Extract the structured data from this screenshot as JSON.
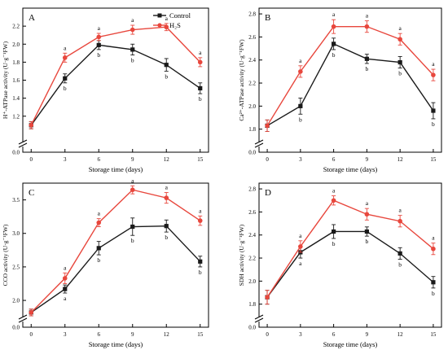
{
  "chart_data": [
    {
      "type": "line",
      "panel_label": "A",
      "xlabel": "Storage time (days)",
      "ylabel": "H⁺-ATPase activity (U·g⁻¹FW)",
      "x": [
        0,
        3,
        6,
        9,
        12,
        15
      ],
      "x_ticks": [
        "0",
        "3",
        "6",
        "9",
        "12",
        "15"
      ],
      "ylim": [
        0.8,
        2.4
      ],
      "y_break": [
        0.2,
        1.0
      ],
      "y_ticks": [
        "0.0",
        "1.2",
        "1.4",
        "1.6",
        "1.8",
        "2.0",
        "2.2"
      ],
      "y_tick_values": [
        0.8,
        1.2,
        1.4,
        1.6,
        1.8,
        2.0,
        2.2
      ],
      "legend": {
        "position": "top-right"
      },
      "series": [
        {
          "name": "Control",
          "color": "#1a1a1a",
          "marker": "square",
          "values": [
            1.1,
            1.62,
            1.99,
            1.94,
            1.77,
            1.51
          ],
          "errors": [
            0.04,
            0.05,
            0.05,
            0.06,
            0.07,
            0.06
          ],
          "letters": [
            "",
            "b",
            "b",
            "b",
            "b",
            "b"
          ]
        },
        {
          "name": "H₂S",
          "color": "#e8473d",
          "marker": "circle",
          "values": [
            1.1,
            1.85,
            2.08,
            2.16,
            2.19,
            1.8
          ],
          "errors": [
            0.04,
            0.05,
            0.04,
            0.05,
            0.04,
            0.05
          ],
          "letters": [
            "",
            "a",
            "a",
            "a",
            "a",
            "a"
          ]
        }
      ]
    },
    {
      "type": "line",
      "panel_label": "B",
      "xlabel": "Storage time (days)",
      "ylabel": "Ca²⁺-ATPase activity (U·g⁻¹FW)",
      "x": [
        0,
        3,
        6,
        9,
        12,
        15
      ],
      "x_ticks": [
        "0",
        "3",
        "6",
        "9",
        "12",
        "15"
      ],
      "ylim": [
        1.6,
        2.85
      ],
      "y_break": [
        0.2,
        1.75
      ],
      "y_ticks": [
        "0.0",
        "1.8",
        "2.0",
        "2.2",
        "2.4",
        "2.6",
        "2.8"
      ],
      "y_tick_values": [
        1.6,
        1.8,
        2.0,
        2.2,
        2.4,
        2.6,
        2.8
      ],
      "series": [
        {
          "name": "Control",
          "color": "#1a1a1a",
          "marker": "square",
          "values": [
            1.83,
            2.0,
            2.54,
            2.41,
            2.38,
            1.96
          ],
          "errors": [
            0.05,
            0.07,
            0.05,
            0.04,
            0.05,
            0.07
          ],
          "letters": [
            "",
            "b",
            "b",
            "b",
            "b",
            "b"
          ]
        },
        {
          "name": "H₂S",
          "color": "#e8473d",
          "marker": "circle",
          "values": [
            1.83,
            2.3,
            2.69,
            2.69,
            2.58,
            2.27
          ],
          "errors": [
            0.05,
            0.05,
            0.06,
            0.05,
            0.05,
            0.05
          ],
          "letters": [
            "",
            "a",
            "a",
            "a",
            "a",
            "a"
          ]
        }
      ]
    },
    {
      "type": "line",
      "panel_label": "C",
      "xlabel": "Storage time (days)",
      "ylabel": "CCO activity (U·g⁻¹FW)",
      "x": [
        0,
        3,
        6,
        9,
        12,
        15
      ],
      "x_ticks": [
        "0",
        "3",
        "6",
        "9",
        "12",
        "15"
      ],
      "ylim": [
        1.6,
        3.75
      ],
      "y_break": [
        0.2,
        1.7
      ],
      "y_ticks": [
        "0.0",
        "2.0",
        "2.5",
        "3.0",
        "3.5"
      ],
      "y_tick_values": [
        1.6,
        2.0,
        2.5,
        3.0,
        3.5
      ],
      "series": [
        {
          "name": "Control",
          "color": "#1a1a1a",
          "marker": "square",
          "values": [
            1.82,
            2.17,
            2.78,
            3.1,
            3.11,
            2.58
          ],
          "errors": [
            0.05,
            0.06,
            0.1,
            0.13,
            0.09,
            0.08
          ],
          "letters": [
            "",
            "a",
            "b",
            "b",
            "b",
            "b"
          ]
        },
        {
          "name": "H₂S",
          "color": "#e8473d",
          "marker": "circle",
          "values": [
            1.82,
            2.33,
            3.16,
            3.65,
            3.53,
            3.19
          ],
          "errors": [
            0.05,
            0.08,
            0.06,
            0.06,
            0.08,
            0.07
          ],
          "letters": [
            "",
            "a",
            "a",
            "a",
            "a",
            "a"
          ]
        }
      ]
    },
    {
      "type": "line",
      "panel_label": "D",
      "xlabel": "Storage time (days)",
      "ylabel": "SDH activity (U·g⁻¹FW)",
      "x": [
        0,
        3,
        6,
        9,
        12,
        15
      ],
      "x_ticks": [
        "0",
        "3",
        "6",
        "9",
        "12",
        "15"
      ],
      "ylim": [
        1.6,
        2.85
      ],
      "y_break": [
        0.2,
        1.75
      ],
      "y_ticks": [
        "0.0",
        "1.8",
        "2.0",
        "2.2",
        "2.4",
        "2.6",
        "2.8"
      ],
      "y_tick_values": [
        1.6,
        1.8,
        2.0,
        2.2,
        2.4,
        2.6,
        2.8
      ],
      "series": [
        {
          "name": "Control",
          "color": "#1a1a1a",
          "marker": "square",
          "values": [
            1.86,
            2.25,
            2.43,
            2.43,
            2.24,
            1.99
          ],
          "errors": [
            0.06,
            0.05,
            0.06,
            0.04,
            0.05,
            0.05
          ],
          "letters": [
            "",
            "a",
            "b",
            "b",
            "b",
            "b"
          ]
        },
        {
          "name": "H₂S",
          "color": "#e8473d",
          "marker": "circle",
          "values": [
            1.86,
            2.3,
            2.7,
            2.58,
            2.52,
            2.28
          ],
          "errors": [
            0.06,
            0.05,
            0.04,
            0.05,
            0.05,
            0.05
          ],
          "letters": [
            "",
            "a",
            "a",
            "a",
            "a",
            "a"
          ]
        }
      ]
    }
  ]
}
